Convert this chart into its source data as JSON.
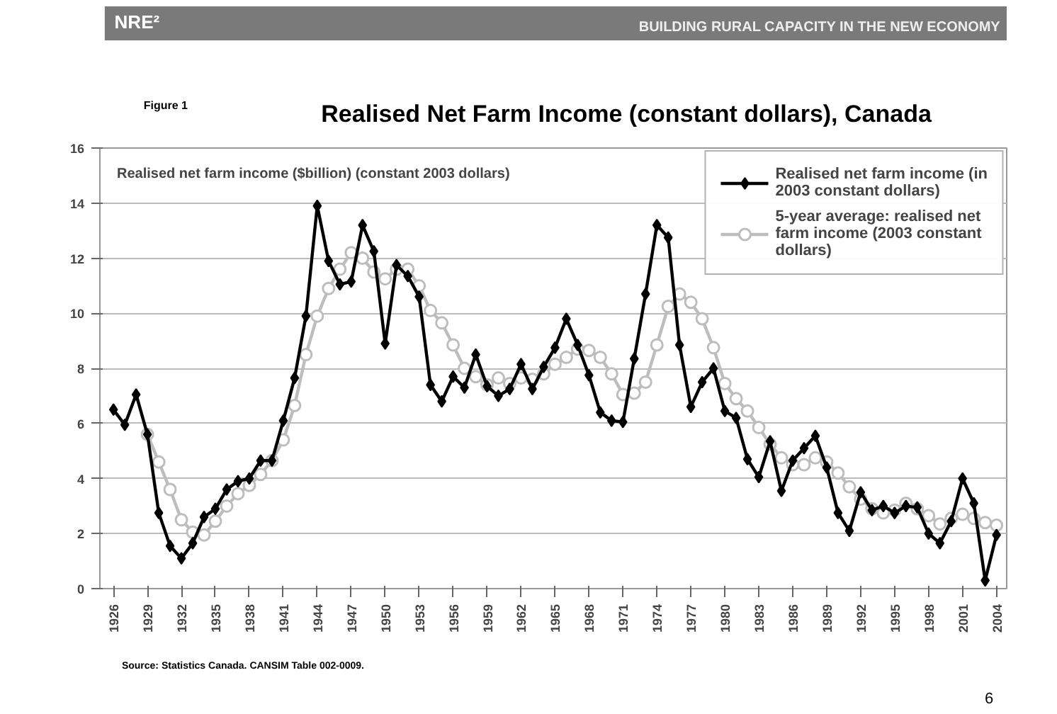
{
  "chart_data": {
    "type": "line",
    "title": "Realised Net Farm Income (constant dollars), Canada",
    "ylabel": "Realised net farm income ($billion) (constant 2003 dollars)",
    "annotations": [
      "NRE²",
      "BUILDING RURAL CAPACITY IN THE NEW ECONOMY",
      "Figure 1",
      "Source: Statistics Canada. CANSIM Table 002-0009.",
      "6"
    ],
    "x": [
      1926,
      1927,
      1928,
      1929,
      1930,
      1931,
      1932,
      1933,
      1934,
      1935,
      1936,
      1937,
      1938,
      1939,
      1940,
      1941,
      1942,
      1943,
      1944,
      1945,
      1946,
      1947,
      1948,
      1949,
      1950,
      1951,
      1952,
      1953,
      1954,
      1955,
      1956,
      1957,
      1958,
      1959,
      1960,
      1961,
      1962,
      1963,
      1964,
      1965,
      1966,
      1967,
      1968,
      1969,
      1970,
      1971,
      1972,
      1973,
      1974,
      1975,
      1976,
      1977,
      1978,
      1979,
      1980,
      1981,
      1982,
      1983,
      1984,
      1985,
      1986,
      1987,
      1988,
      1989,
      1990,
      1991,
      1992,
      1993,
      1994,
      1995,
      1996,
      1997,
      1998,
      1999,
      2000,
      2001,
      2002,
      2003,
      2004
    ],
    "series": [
      {
        "name": "Realised net farm income (in 2003 constant dollars)",
        "color": "#000000",
        "marker": "diamond",
        "values": [
          6.5,
          5.95,
          7.05,
          5.6,
          2.75,
          1.55,
          1.1,
          1.65,
          2.6,
          2.9,
          3.6,
          3.9,
          4.0,
          4.65,
          4.65,
          6.1,
          7.65,
          9.9,
          13.9,
          11.9,
          11.05,
          11.15,
          13.2,
          12.25,
          8.9,
          11.75,
          11.35,
          10.6,
          7.4,
          6.8,
          7.7,
          7.3,
          8.5,
          7.35,
          7.0,
          7.25,
          8.15,
          7.25,
          8.05,
          8.75,
          9.8,
          8.85,
          7.75,
          6.4,
          6.1,
          6.05,
          8.35,
          10.7,
          13.2,
          12.75,
          8.85,
          6.6,
          7.5,
          8.0,
          6.45,
          6.2,
          4.7,
          4.05,
          5.35,
          3.55,
          4.65,
          5.1,
          5.55,
          4.4,
          2.75,
          2.1,
          3.5,
          2.85,
          3.0,
          2.75,
          3.0,
          2.95,
          2.0,
          1.65,
          2.45,
          4.0,
          3.1,
          0.3,
          1.95
        ]
      },
      {
        "name": "5-year average: realised net farm income (2003 constant dollars)",
        "color": "#bdbdbd",
        "marker": "circle",
        "values": [
          null,
          null,
          null,
          5.6,
          4.6,
          3.6,
          2.5,
          2.05,
          1.95,
          2.45,
          3.0,
          3.45,
          3.75,
          4.15,
          4.65,
          5.4,
          6.65,
          8.5,
          9.9,
          10.9,
          11.6,
          12.2,
          12.0,
          11.5,
          11.25,
          11.6,
          11.6,
          11.0,
          10.1,
          9.65,
          8.85,
          8.0,
          7.7,
          7.4,
          7.65,
          7.45,
          7.65,
          7.6,
          7.8,
          8.15,
          8.4,
          8.7,
          8.65,
          8.4,
          7.8,
          7.05,
          7.1,
          7.5,
          8.85,
          10.25,
          10.7,
          10.4,
          9.8,
          8.75,
          7.45,
          6.9,
          6.45,
          5.85,
          5.25,
          4.75,
          4.5,
          4.5,
          4.75,
          4.6,
          4.2,
          3.7,
          3.25,
          2.9,
          2.75,
          2.85,
          3.1,
          2.9,
          2.65,
          2.35,
          2.55,
          2.7,
          2.55,
          2.4,
          2.3
        ]
      }
    ],
    "xlim": [
      1924.8,
      2004.9
    ],
    "xticks": [
      1926,
      1929,
      1932,
      1935,
      1938,
      1941,
      1944,
      1947,
      1950,
      1953,
      1956,
      1959,
      1962,
      1965,
      1968,
      1971,
      1974,
      1977,
      1980,
      1983,
      1986,
      1989,
      1992,
      1995,
      1998,
      2001,
      2004
    ],
    "ylim": [
      0,
      16
    ],
    "yticks": [
      0,
      2,
      4,
      6,
      8,
      10,
      12,
      14,
      16
    ],
    "grid": "y",
    "legend": "top right",
    "line_style": "solid"
  }
}
